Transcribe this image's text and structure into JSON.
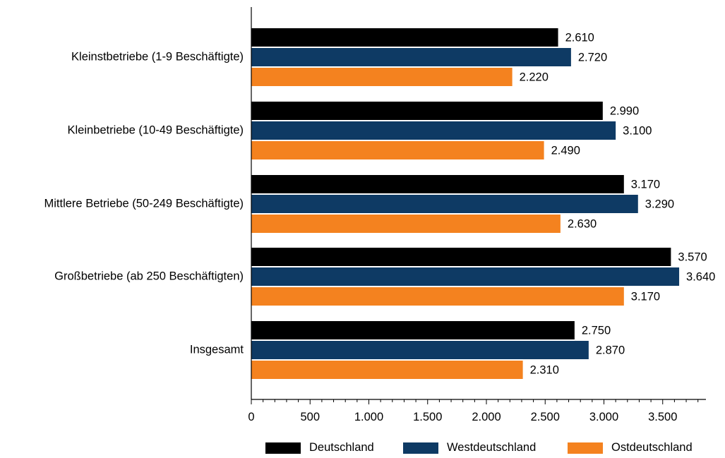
{
  "chart_data": {
    "type": "bar",
    "orientation": "horizontal",
    "title": "",
    "xlabel": "",
    "ylabel": "",
    "categories": [
      "Kleinstbetriebe (1-9 Beschäftigte)",
      "Kleinbetriebe (10-49 Beschäftigte)",
      "Mittlere Betriebe (50-249 Beschäftigte)",
      "Großbetriebe (ab 250 Beschäftigten)",
      "Insgesamt"
    ],
    "series": [
      {
        "name": "Deutschland",
        "color": "#000000",
        "values": [
          2610,
          2990,
          3170,
          3570,
          2750
        ],
        "labels": [
          "2.610",
          "2.990",
          "3.170",
          "3.570",
          "2.750"
        ]
      },
      {
        "name": "Westdeutschland",
        "color": "#0e3a64",
        "values": [
          2720,
          3100,
          3290,
          3640,
          2870
        ],
        "labels": [
          "2.720",
          "3.100",
          "3.290",
          "3.640",
          "2.870"
        ]
      },
      {
        "name": "Ostdeutschland",
        "color": "#f4821f",
        "values": [
          2220,
          2490,
          2630,
          3170,
          2310
        ],
        "labels": [
          "2.220",
          "2.490",
          "2.630",
          "3.170",
          "2.310"
        ]
      }
    ],
    "xlim": [
      0,
      3900
    ],
    "xticks": [
      0,
      500,
      1000,
      1500,
      2000,
      2500,
      3000,
      3500
    ],
    "xtick_labels": [
      "0",
      "500",
      "1.000",
      "1.500",
      "2.000",
      "2.500",
      "3.000",
      "3.500"
    ],
    "minor_tick_step": 100,
    "grid": false,
    "legend_position": "bottom"
  }
}
